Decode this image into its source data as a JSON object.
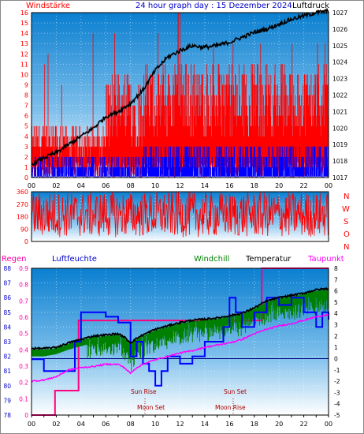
{
  "header": {
    "left": "Windstärke",
    "center": "24 hour graph day : 15 Dezember 2024",
    "right": "Luftdruck"
  },
  "direction_letters": [
    "N",
    "W",
    "S",
    "O",
    "N"
  ],
  "bottom_header": {
    "regen": "Regen",
    "luftfeuchte": "Luftfeuchte",
    "windchill": "Windchill",
    "temperatur": "Temperatur",
    "taupunkt": "Taupunkt"
  },
  "annotations": {
    "sun_rise": "Sun Rise",
    "sun_set": "Sun Set",
    "moon_set": "Moon Set",
    "moon_rise": "Moon Rise"
  },
  "colors": {
    "wind_gust": "#ff0000",
    "wind_avg": "#0000ff",
    "pressure": "#000000",
    "direction": "#ff0000",
    "humidity": "#0000ff",
    "windchill": "#008000",
    "temperature": "#000000",
    "dewpoint": "#ff00ff",
    "rain": "#ff0080"
  },
  "chart_data": [
    {
      "type": "line",
      "title": "24 hour graph day : 15 Dezember 2024",
      "x_ticks": [
        "00",
        "02",
        "04",
        "06",
        "08",
        "10",
        "12",
        "14",
        "16",
        "18",
        "20",
        "22",
        "00"
      ],
      "ylabel_left": "Windstärke",
      "ylim_left": [
        0,
        16
      ],
      "y_ticks_left": [
        "0",
        "1",
        "2",
        "3",
        "4",
        "5",
        "6",
        "7",
        "8",
        "9",
        "10",
        "11",
        "12",
        "13",
        "14",
        "15",
        "16"
      ],
      "ylabel_right": "Luftdruck",
      "ylim_right": [
        1017,
        1027
      ],
      "y_ticks_right": [
        "1017",
        "1018",
        "1019",
        "1020",
        "1021",
        "1022",
        "1023",
        "1024",
        "1025",
        "1026",
        "1027"
      ],
      "series": [
        {
          "name": "Luftdruck",
          "axis": "right",
          "x": [
            0,
            1,
            2,
            3,
            4,
            5,
            6,
            7,
            8,
            9,
            10,
            11,
            12,
            13,
            14,
            15,
            16,
            17,
            18,
            19,
            20,
            21,
            22,
            23,
            24
          ],
          "values": [
            1017.8,
            1018.2,
            1018.5,
            1019.0,
            1019.5,
            1020.0,
            1020.7,
            1021.0,
            1021.5,
            1022.3,
            1023.5,
            1024.3,
            1024.7,
            1025.0,
            1024.9,
            1025.0,
            1025.2,
            1025.5,
            1025.8,
            1026.0,
            1026.3,
            1026.6,
            1026.8,
            1027.0,
            1027.1
          ]
        }
      ],
      "wind_gust_range": {
        "name": "Windstärke",
        "axis": "left",
        "min": 0,
        "max": 16
      },
      "wind_avg_range": {
        "name": "Windstärke",
        "axis": "left",
        "min": 0,
        "max": 3.5
      }
    },
    {
      "type": "line",
      "x_ticks": [
        "00",
        "02",
        "04",
        "06",
        "08",
        "10",
        "12",
        "14",
        "16",
        "18",
        "20",
        "22",
        "00"
      ],
      "ylim": [
        0,
        360
      ],
      "y_ticks": [
        "0",
        "90",
        "180",
        "270",
        "360"
      ],
      "direction_range": {
        "min": 0,
        "max": 360
      }
    },
    {
      "type": "line",
      "x_ticks": [
        "00",
        "02",
        "04",
        "06",
        "08",
        "10",
        "12",
        "14",
        "16",
        "18",
        "20",
        "22",
        "00"
      ],
      "axes": {
        "regen": {
          "ticks": [
            "0",
            "0.1",
            "0.2",
            "0.3",
            "0.4",
            "0.5",
            "0.6",
            "0.7",
            "0.8",
            "0.9"
          ],
          "ylim": [
            0,
            0.9
          ]
        },
        "luftfeuchte": {
          "ticks": [
            "78",
            "79",
            "80",
            "81",
            "82",
            "83",
            "84",
            "85",
            "86",
            "87",
            "88"
          ],
          "ylim": [
            78,
            88
          ]
        },
        "temperatur": {
          "ticks": [
            "-5",
            "-4",
            "-3",
            "-2",
            "-1",
            "0",
            "1",
            "2",
            "3",
            "4",
            "5",
            "6",
            "7",
            "8"
          ],
          "ylim": [
            -5,
            8
          ]
        }
      },
      "series": [
        {
          "name": "Temperatur",
          "axis": "temperatur",
          "x": [
            0,
            1,
            2,
            3,
            4,
            5,
            6,
            7,
            7.5,
            8,
            8.5,
            9,
            10,
            11,
            12,
            13,
            14,
            15,
            16,
            17,
            18,
            19,
            20,
            21,
            22,
            23,
            24
          ],
          "values": [
            0.9,
            0.9,
            1.0,
            1.4,
            1.7,
            2.0,
            2.1,
            2.2,
            1.9,
            1.4,
            1.8,
            2.1,
            2.6,
            2.9,
            3.2,
            3.4,
            3.5,
            3.6,
            3.8,
            4.0,
            4.5,
            5.1,
            5.4,
            5.6,
            5.8,
            6.1,
            6.2
          ]
        },
        {
          "name": "Windchill",
          "axis": "temperatur",
          "x": [
            0,
            1,
            2,
            3,
            4,
            5,
            6,
            7,
            7.5,
            8,
            8.5,
            9,
            10,
            11,
            12,
            13,
            14,
            15,
            16,
            17,
            18,
            19,
            20,
            21,
            22,
            23,
            24
          ],
          "values": [
            0.2,
            0.2,
            0.4,
            0.8,
            1.1,
            1.4,
            1.6,
            1.6,
            1.2,
            0.2,
            0.8,
            1.3,
            1.9,
            2.2,
            2.6,
            2.8,
            2.9,
            3.0,
            3.2,
            3.4,
            3.8,
            4.4,
            4.7,
            4.8,
            5.0,
            5.3,
            5.4
          ]
        },
        {
          "name": "Taupunkt",
          "axis": "temperatur",
          "x": [
            0,
            1,
            2,
            3,
            4,
            5,
            6,
            7,
            7.5,
            8,
            8.5,
            9,
            10,
            11,
            12,
            13,
            14,
            15,
            16,
            17,
            18,
            19,
            20,
            21,
            22,
            23,
            24
          ],
          "values": [
            -2.0,
            -1.9,
            -1.6,
            -1.0,
            -0.8,
            -0.7,
            -0.5,
            -0.5,
            -0.8,
            -1.3,
            -0.8,
            -0.5,
            -0.1,
            0.2,
            0.5,
            0.7,
            1.0,
            1.2,
            1.4,
            1.7,
            2.2,
            2.6,
            2.9,
            3.1,
            3.4,
            3.7,
            3.9
          ]
        },
        {
          "name": "Luftfeuchte",
          "axis": "luftfeuchte",
          "x": [
            0,
            0.5,
            1,
            2,
            3,
            3.2,
            3.5,
            4,
            5,
            6,
            7,
            8,
            8.5,
            9,
            9.5,
            10,
            10.5,
            11,
            12,
            13,
            14,
            15,
            15.5,
            16,
            16.5,
            17,
            18,
            19,
            20,
            21,
            22,
            23,
            23.5,
            24
          ],
          "values": [
            81.8,
            81.8,
            81.0,
            81.0,
            81.0,
            81.0,
            83.0,
            85.0,
            85.0,
            84.7,
            84.3,
            82.0,
            83.0,
            81.5,
            81.0,
            80.0,
            81.0,
            82.0,
            81.5,
            82.0,
            83.0,
            83.0,
            84.0,
            86.0,
            85.0,
            84.0,
            85.0,
            86.0,
            85.5,
            86.0,
            85.0,
            84.0,
            85.0,
            84.5
          ]
        },
        {
          "name": "Regen",
          "axis": "regen",
          "x": [
            0,
            1.9,
            1.9,
            3.8,
            3.8,
            18.6,
            18.6,
            24
          ],
          "values": [
            0,
            0,
            0.15,
            0.15,
            0.58,
            0.58,
            0.9,
            0.9
          ]
        }
      ]
    }
  ]
}
